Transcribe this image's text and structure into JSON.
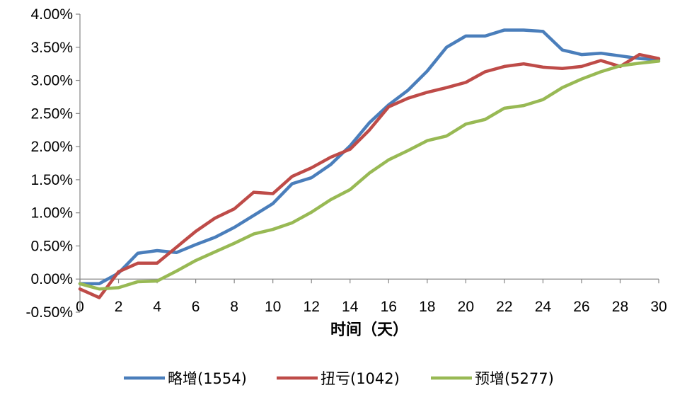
{
  "chart_data": {
    "type": "line",
    "xlabel": "时间（天）",
    "ylabel": "",
    "title": "",
    "xlim": [
      0,
      30
    ],
    "ylim": [
      -0.005,
      0.04
    ],
    "x_ticks": [
      "0",
      "2",
      "4",
      "6",
      "8",
      "10",
      "12",
      "14",
      "16",
      "18",
      "20",
      "22",
      "24",
      "26",
      "28",
      "30"
    ],
    "y_ticks": [
      "-0.50%",
      "0.00%",
      "0.50%",
      "1.00%",
      "1.50%",
      "2.00%",
      "2.50%",
      "3.00%",
      "3.50%",
      "4.00%"
    ],
    "y_tick_values": [
      -0.005,
      0.0,
      0.005,
      0.01,
      0.015,
      0.02,
      0.025,
      0.03,
      0.035,
      0.04
    ],
    "grid": false,
    "legend_position": "bottom",
    "x": [
      0,
      1,
      2,
      3,
      4,
      5,
      6,
      7,
      8,
      9,
      10,
      11,
      12,
      13,
      14,
      15,
      16,
      17,
      18,
      19,
      20,
      21,
      22,
      23,
      24,
      25,
      26,
      27,
      28,
      29,
      30
    ],
    "series": [
      {
        "name": "略增(1554)",
        "color": "#4a7ebb",
        "values": [
          -0.0007,
          -0.0007,
          0.0009,
          0.0039,
          0.0043,
          0.004,
          0.0052,
          0.0063,
          0.0078,
          0.0096,
          0.0114,
          0.0144,
          0.0153,
          0.0173,
          0.0201,
          0.0236,
          0.0263,
          0.0285,
          0.0314,
          0.035,
          0.0367,
          0.0367,
          0.0376,
          0.0376,
          0.0374,
          0.0346,
          0.0339,
          0.0341,
          0.0337,
          0.0333,
          0.0331
        ]
      },
      {
        "name": "扭亏(1042)",
        "color": "#be4b48",
        "values": [
          -0.0015,
          -0.0028,
          0.0011,
          0.0024,
          0.0024,
          0.0048,
          0.0072,
          0.0092,
          0.0106,
          0.0131,
          0.0129,
          0.0155,
          0.0168,
          0.0184,
          0.0196,
          0.0225,
          0.026,
          0.0273,
          0.0282,
          0.0289,
          0.0297,
          0.0313,
          0.0321,
          0.0325,
          0.032,
          0.0318,
          0.0321,
          0.033,
          0.0321,
          0.0339,
          0.0333
        ]
      },
      {
        "name": "预增(5277)",
        "color": "#98b954",
        "values": [
          -0.0007,
          -0.0015,
          -0.0013,
          -0.0004,
          -0.0003,
          0.0012,
          0.0028,
          0.0041,
          0.0054,
          0.0068,
          0.0075,
          0.0085,
          0.0101,
          0.012,
          0.0135,
          0.016,
          0.018,
          0.0194,
          0.0209,
          0.0216,
          0.0234,
          0.0241,
          0.0258,
          0.0262,
          0.0271,
          0.0289,
          0.0302,
          0.0313,
          0.0322,
          0.0326,
          0.0329
        ]
      }
    ]
  }
}
